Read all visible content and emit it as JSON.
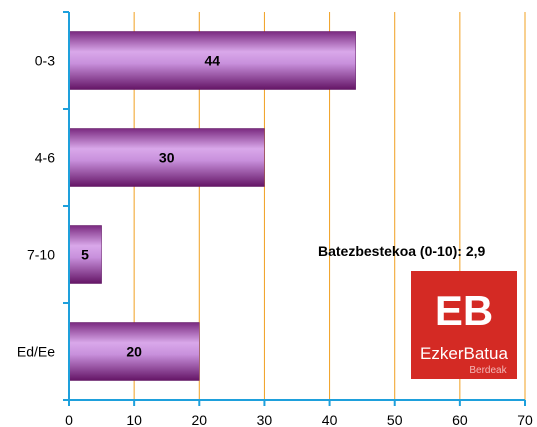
{
  "chart_data": {
    "type": "bar",
    "orientation": "horizontal",
    "categories": [
      "0-3",
      "4-6",
      "7-10",
      "Ed/Ee"
    ],
    "values": [
      44,
      30,
      5,
      20
    ],
    "data_labels": [
      "44",
      "30",
      "5",
      "20"
    ],
    "xlim": [
      0,
      70
    ],
    "x_ticks": [
      "0",
      "10",
      "20",
      "30",
      "40",
      "50",
      "60",
      "70"
    ],
    "grid": "vertical",
    "annotation": "Batezbestekoa (0-10): 2,9",
    "colors": {
      "bar_light": "#cf9fe0",
      "bar_dark": "#6e1a72",
      "grid": "#f0a020",
      "axis": "#1ea0dc"
    }
  },
  "logo": {
    "initials": "EB",
    "name": "EzkerBatua",
    "subtitle": "Berdeak",
    "background": "#d42a24"
  }
}
